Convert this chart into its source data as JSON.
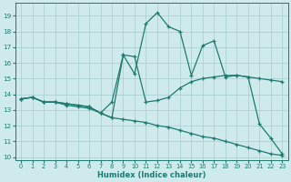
{
  "background_color": "#ceeaea",
  "grid_color": "#a8cccc",
  "line_color": "#1e7b6e",
  "xlabel": "Humidex (Indice chaleur)",
  "xlim": [
    -0.5,
    23.5
  ],
  "ylim": [
    9.8,
    19.8
  ],
  "yticks": [
    10,
    11,
    12,
    13,
    14,
    15,
    16,
    17,
    18,
    19
  ],
  "xticks": [
    0,
    1,
    2,
    3,
    4,
    5,
    6,
    7,
    8,
    9,
    10,
    11,
    12,
    13,
    14,
    15,
    16,
    17,
    18,
    19,
    20,
    21,
    22,
    23
  ],
  "line1_x": [
    0,
    1,
    2,
    3,
    4,
    5,
    6,
    7,
    8,
    9,
    10,
    11,
    12,
    13,
    14,
    15,
    16,
    17,
    18,
    19,
    20,
    21,
    22,
    23
  ],
  "line1_y": [
    13.7,
    13.8,
    13.5,
    13.5,
    13.4,
    13.3,
    13.2,
    12.8,
    12.5,
    16.5,
    15.3,
    18.5,
    19.2,
    18.3,
    18.0,
    15.2,
    17.1,
    17.4,
    15.1,
    15.2,
    15.1,
    12.1,
    11.2,
    10.2
  ],
  "line2_x": [
    0,
    1,
    2,
    3,
    4,
    5,
    6,
    7,
    8,
    9,
    10,
    11,
    12,
    13,
    14,
    15,
    16,
    17,
    18,
    19,
    20,
    21,
    22,
    23
  ],
  "line2_y": [
    13.7,
    13.8,
    13.5,
    13.5,
    13.4,
    13.3,
    13.2,
    12.8,
    13.5,
    16.5,
    16.4,
    13.5,
    13.6,
    13.8,
    14.4,
    14.8,
    15.0,
    15.1,
    15.2,
    15.2,
    15.1,
    15.0,
    14.9,
    14.8
  ],
  "line3_x": [
    0,
    1,
    2,
    3,
    4,
    5,
    6,
    7,
    8,
    9,
    10,
    11,
    12,
    13,
    14,
    15,
    16,
    17,
    18,
    19,
    20,
    21,
    22,
    23
  ],
  "line3_y": [
    13.7,
    13.8,
    13.5,
    13.5,
    13.3,
    13.2,
    13.1,
    12.8,
    12.5,
    12.4,
    12.3,
    12.2,
    12.0,
    11.9,
    11.7,
    11.5,
    11.3,
    11.2,
    11.0,
    10.8,
    10.6,
    10.4,
    10.2,
    10.1
  ]
}
